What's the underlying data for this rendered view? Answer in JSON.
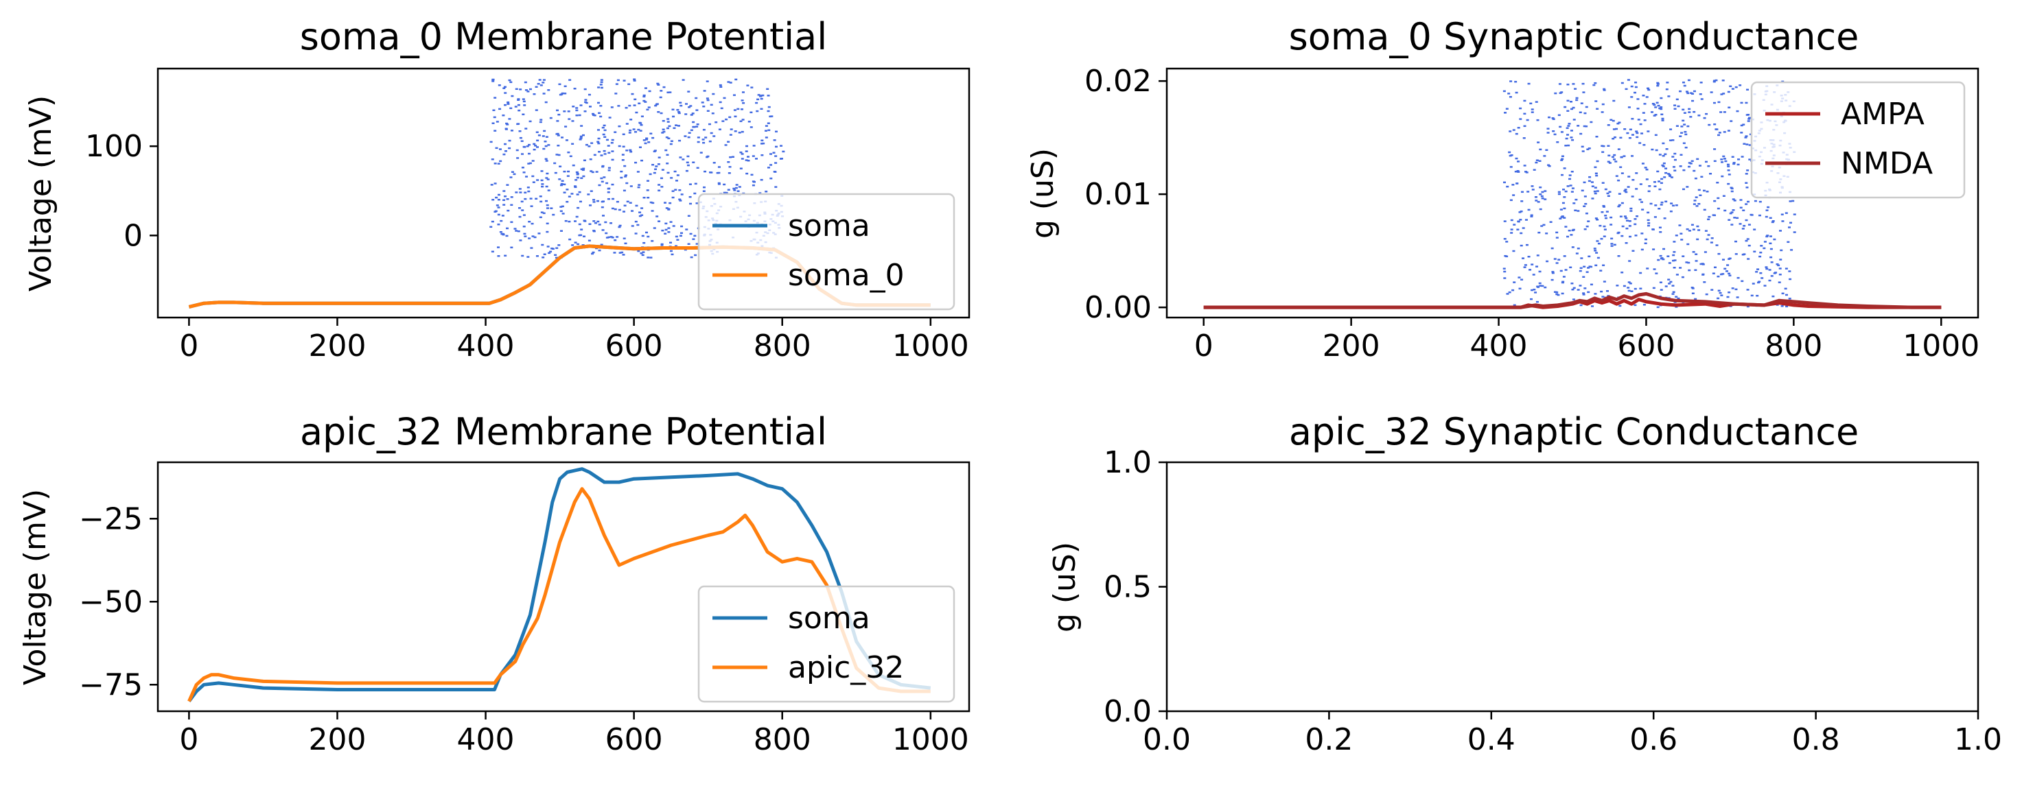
{
  "chart_data": [
    {
      "id": "soma-potential",
      "type": "line",
      "title": "soma_0 Membrane Potential",
      "xlabel": "",
      "ylabel": "Voltage (mV)",
      "xlim": [
        -42,
        1052
      ],
      "ylim": [
        -92,
        187
      ],
      "xticks": [
        0,
        200,
        400,
        600,
        800,
        1000
      ],
      "yticks": [
        0,
        100
      ],
      "legend_position": "lower-right",
      "raster": {
        "color": "#4169e1",
        "x_range": [
          405,
          800
        ],
        "y_range": [
          -25,
          175
        ],
        "count": 900,
        "seed": 7
      },
      "series": [
        {
          "name": "soma",
          "color": "#1f77b4",
          "x": [
            0,
            10,
            20,
            40,
            60,
            100,
            200,
            300,
            380,
            405,
            420,
            440,
            460,
            480,
            500,
            520,
            540,
            560,
            600,
            640,
            680,
            720,
            760,
            790,
            820,
            850,
            880,
            900,
            940,
            1000
          ],
          "y": [
            -80,
            -78,
            -76,
            -75,
            -75,
            -76,
            -76,
            -76,
            -76,
            -76,
            -72,
            -64,
            -55,
            -40,
            -25,
            -14,
            -12,
            -13,
            -15,
            -14,
            -14,
            -13,
            -14,
            -16,
            -30,
            -60,
            -76,
            -78,
            -78,
            -78
          ]
        },
        {
          "name": "soma_0",
          "color": "#ff7f0e",
          "x": [
            0,
            10,
            20,
            40,
            60,
            100,
            200,
            300,
            380,
            405,
            420,
            440,
            460,
            480,
            500,
            520,
            540,
            560,
            600,
            640,
            680,
            720,
            760,
            790,
            820,
            850,
            880,
            900,
            940,
            1000
          ],
          "y": [
            -80,
            -78,
            -76,
            -75,
            -75,
            -76,
            -76,
            -76,
            -76,
            -76,
            -72,
            -64,
            -55,
            -40,
            -25,
            -14,
            -12,
            -13,
            -15,
            -14,
            -14,
            -13,
            -14,
            -16,
            -30,
            -60,
            -76,
            -78,
            -78,
            -78
          ]
        }
      ]
    },
    {
      "id": "soma-conductance",
      "type": "line",
      "title": "soma_0 Synaptic Conductance",
      "xlabel": "",
      "ylabel": "g (uS)",
      "xlim": [
        -50,
        1050
      ],
      "ylim": [
        -0.0009,
        0.0211
      ],
      "xticks": [
        0,
        200,
        400,
        600,
        800,
        1000
      ],
      "yticks": [
        0.0,
        0.01,
        0.02
      ],
      "ytick_labels": [
        "0.00",
        "0.01",
        "0.02"
      ],
      "legend_position": "upper-right",
      "raster": {
        "color": "#4169e1",
        "x_range": [
          405,
          800
        ],
        "y_range": [
          0,
          0.0201
        ],
        "count": 1000,
        "seed": 13
      },
      "series": [
        {
          "name": "AMPA",
          "color": "#b22222",
          "x": [
            0,
            430,
            440,
            450,
            460,
            480,
            500,
            510,
            520,
            530,
            540,
            550,
            560,
            570,
            580,
            590,
            600,
            620,
            640,
            680,
            700,
            720,
            760,
            780,
            800,
            820,
            900,
            1000
          ],
          "y": [
            0,
            0,
            0.0002,
            0.0001,
            0,
            0.0001,
            0.0003,
            0.0005,
            0.0003,
            0.0006,
            0.0004,
            0.0006,
            0.0003,
            0.0006,
            0.0003,
            0.0007,
            0.0005,
            0.0003,
            0.0002,
            0.0003,
            0.0001,
            0.0003,
            0.0002,
            0.0004,
            0.0002,
            0.0001,
            0,
            0
          ]
        },
        {
          "name": "NMDA",
          "color": "#a52a2a",
          "x": [
            0,
            430,
            440,
            450,
            460,
            480,
            500,
            510,
            520,
            530,
            540,
            550,
            560,
            570,
            580,
            590,
            600,
            620,
            640,
            680,
            700,
            720,
            760,
            780,
            800,
            820,
            860,
            900,
            960,
            1000
          ],
          "y": [
            0,
            0,
            0.0001,
            0.0002,
            0.0001,
            0.0002,
            0.0004,
            0.0006,
            0.0005,
            0.0008,
            0.0006,
            0.0009,
            0.0007,
            0.001,
            0.0008,
            0.0011,
            0.0012,
            0.0008,
            0.0006,
            0.0005,
            0.0004,
            0.0003,
            0.0002,
            0.0006,
            0.0005,
            0.0004,
            0.0002,
            0.0001,
            0,
            0
          ]
        }
      ]
    },
    {
      "id": "apic-potential",
      "type": "line",
      "title": "apic_32 Membrane Potential",
      "xlabel": "",
      "ylabel": "Voltage (mV)",
      "xlim": [
        -42,
        1052
      ],
      "ylim": [
        -83,
        -8
      ],
      "xticks": [
        0,
        200,
        400,
        600,
        800,
        1000
      ],
      "yticks": [
        -75,
        -50,
        -25
      ],
      "ytick_labels": [
        "−75",
        "−50",
        "−25"
      ],
      "legend_position": "lower-right",
      "series": [
        {
          "name": "soma",
          "color": "#1f77b4",
          "x": [
            0,
            10,
            20,
            40,
            60,
            100,
            200,
            300,
            380,
            412,
            420,
            440,
            450,
            460,
            470,
            480,
            490,
            500,
            510,
            520,
            530,
            540,
            560,
            580,
            600,
            650,
            700,
            740,
            760,
            780,
            800,
            820,
            840,
            860,
            880,
            900,
            930,
            960,
            1000
          ],
          "y": [
            -80,
            -77,
            -75,
            -74.5,
            -75,
            -76,
            -76.5,
            -76.5,
            -76.5,
            -76.5,
            -72,
            -66,
            -60,
            -54,
            -43,
            -32,
            -20,
            -13,
            -11,
            -10.5,
            -10,
            -11,
            -14,
            -14,
            -13,
            -12.5,
            -12,
            -11.5,
            -13,
            -15,
            -16,
            -20,
            -27,
            -35,
            -47,
            -62,
            -72,
            -75,
            -76
          ]
        },
        {
          "name": "apic_32",
          "color": "#ff7f0e",
          "x": [
            0,
            10,
            20,
            30,
            40,
            60,
            100,
            200,
            300,
            380,
            412,
            420,
            440,
            450,
            460,
            470,
            480,
            490,
            500,
            510,
            520,
            530,
            540,
            560,
            580,
            600,
            650,
            700,
            720,
            740,
            750,
            760,
            780,
            800,
            820,
            840,
            860,
            880,
            900,
            930,
            960,
            1000
          ],
          "y": [
            -80,
            -75,
            -73,
            -72,
            -72,
            -73,
            -74,
            -74.5,
            -74.5,
            -74.5,
            -74.5,
            -72,
            -68,
            -63,
            -59,
            -55,
            -48,
            -40,
            -32,
            -26,
            -20,
            -16,
            -19,
            -30,
            -39,
            -37,
            -33,
            -30,
            -29,
            -26,
            -24,
            -27,
            -35,
            -38,
            -37,
            -38,
            -45,
            -58,
            -70,
            -76,
            -77,
            -77
          ]
        }
      ]
    },
    {
      "id": "apic-conductance",
      "type": "line",
      "title": "apic_32 Synaptic Conductance",
      "xlabel": "",
      "ylabel": "g (uS)",
      "xlim": [
        0,
        1
      ],
      "ylim": [
        0,
        1
      ],
      "xticks": [
        0.0,
        0.2,
        0.4,
        0.6,
        0.8,
        1.0
      ],
      "xtick_labels": [
        "0.0",
        "0.2",
        "0.4",
        "0.6",
        "0.8",
        "1.0"
      ],
      "yticks": [
        0.0,
        0.5,
        1.0
      ],
      "ytick_labels": [
        "0.0",
        "0.5",
        "1.0"
      ],
      "series": []
    }
  ]
}
